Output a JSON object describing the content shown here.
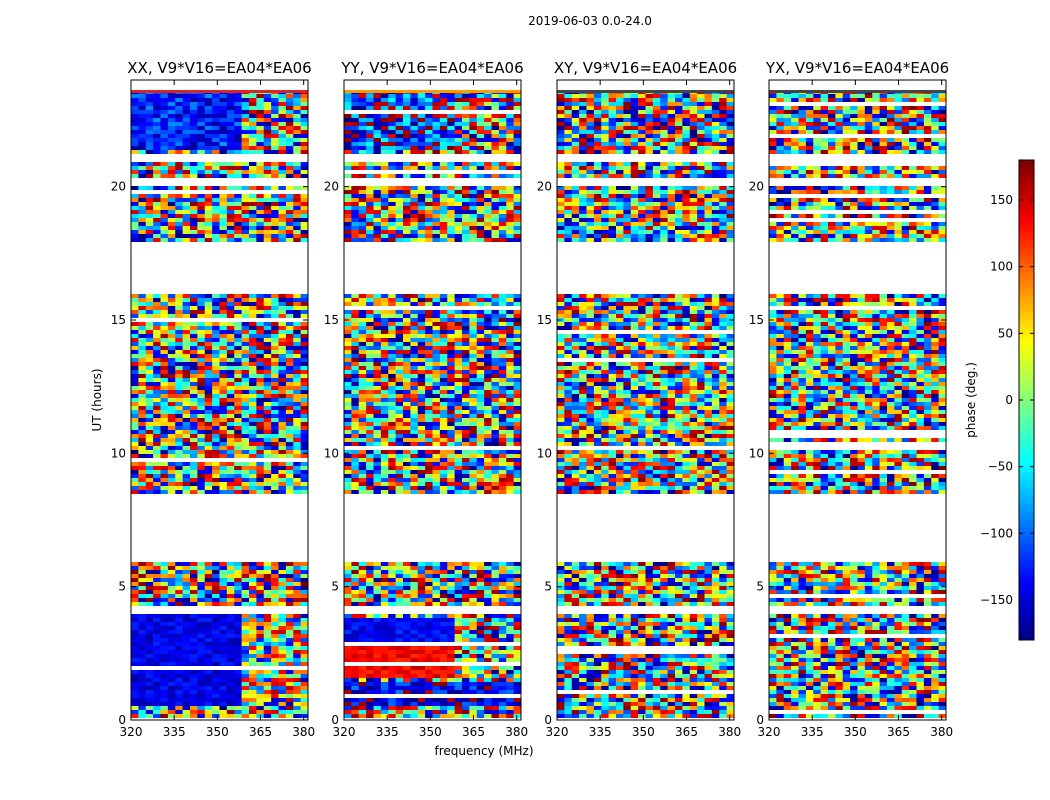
{
  "suptitle": "2019-06-03 0.0-24.0",
  "chart_data": {
    "type": "heatmap",
    "panel_titles": [
      "XX, V9*V16=EA04*EA06",
      "YY, V9*V16=EA04*EA06",
      "XY, V9*V16=EA04*EA06",
      "YX, V9*V16=EA04*EA06"
    ],
    "xlabel": "frequency (MHz)",
    "ylabel": "UT (hours)",
    "xlim": [
      320,
      381.5
    ],
    "ylim": [
      0,
      24
    ],
    "xticks": [
      320,
      335,
      350,
      365,
      380
    ],
    "yticks": [
      0,
      5,
      10,
      15,
      20
    ],
    "colorbar": {
      "label": "phase (deg.)",
      "range": [
        -180,
        180
      ],
      "ticks": [
        150,
        100,
        50,
        0,
        -50,
        -100,
        -150
      ],
      "tick_labels": [
        "150",
        "100",
        "50",
        "0",
        "−50",
        "−100",
        "−150"
      ],
      "colormap": "jet"
    },
    "no_data_gaps_hours": [
      [
        4.05,
        4.2
      ],
      [
        6.0,
        8.5
      ],
      [
        15.9,
        18.0
      ],
      [
        20.1,
        20.3
      ],
      [
        21.0,
        21.2
      ],
      [
        23.8,
        24.0
      ]
    ]
  }
}
